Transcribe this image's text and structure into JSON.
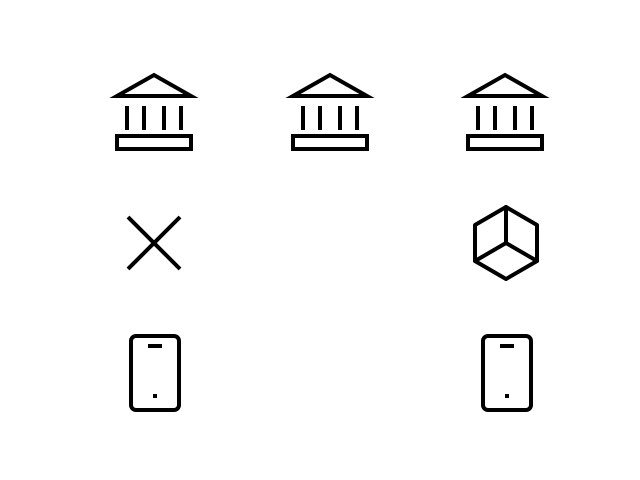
{
  "icons": [
    {
      "row": 1,
      "col": 1,
      "name": "bank-icon"
    },
    {
      "row": 1,
      "col": 2,
      "name": "bank-icon"
    },
    {
      "row": 1,
      "col": 3,
      "name": "bank-icon"
    },
    {
      "row": 2,
      "col": 1,
      "name": "close-icon"
    },
    {
      "row": 2,
      "col": 3,
      "name": "cube-icon"
    },
    {
      "row": 3,
      "col": 1,
      "name": "mobile-phone-icon"
    },
    {
      "row": 3,
      "col": 3,
      "name": "mobile-phone-icon"
    }
  ],
  "colors": {
    "background": "#ffffff",
    "icon_stroke": "#000000"
  }
}
